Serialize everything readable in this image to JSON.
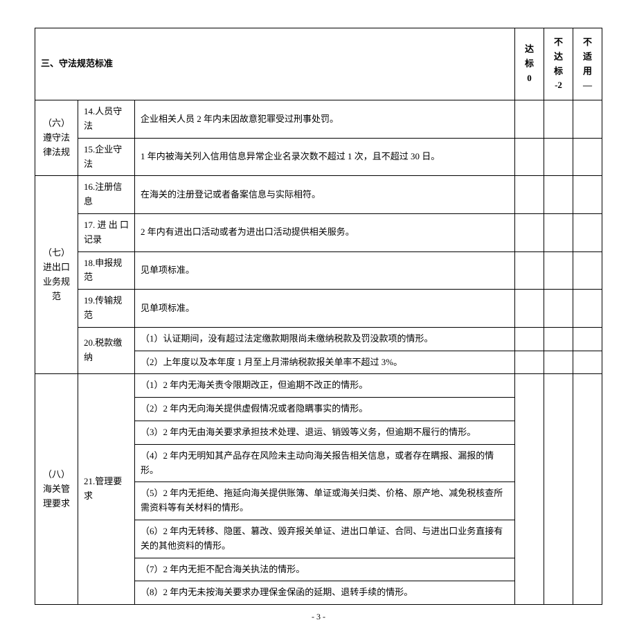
{
  "header": {
    "title": "三、守法规范标准",
    "col_meet": "达标",
    "col_meet_score": "0",
    "col_fail": "不达标",
    "col_fail_score": "-2",
    "col_na": "不适用",
    "col_na_score": "—"
  },
  "sections": {
    "six": {
      "cat": "（六）\n遵守法律法规",
      "r14_item": "14.人员守法",
      "r14_desc": "企业相关人员 2 年内未因故意犯罪受过刑事处罚。",
      "r15_item": "15.企业守法",
      "r15_desc": "1 年内被海关列入信用信息异常企业名录次数不超过 1 次，且不超过 30 日。"
    },
    "seven": {
      "cat": "（七）\n进出口业务规范",
      "r16_item": "16.注册信息",
      "r16_desc": "在海关的注册登记或者备案信息与实际相符。",
      "r17_item": "17. 进 出 口 记录",
      "r17_desc": "2 年内有进出口活动或者为进出口活动提供相关服务。",
      "r18_item": "18.申报规范",
      "r18_desc": "见单项标准。",
      "r19_item": "19.传输规范",
      "r19_desc": "见单项标准。",
      "r20_item": "20.税款缴纳",
      "r20_desc1": "（1）认证期间，没有超过法定缴款期限尚未缴纳税款及罚没款项的情形。",
      "r20_desc2": "（2）上年度以及本年度 1 月至上月滞纳税款报关单率不超过 3%。"
    },
    "eight": {
      "cat": "（八）\n海关管理要求",
      "r21_item": "21.管理要求",
      "r21_d1": "（1）2 年内无海关责令限期改正，但逾期不改正的情形。",
      "r21_d2": "（2）2 年内无向海关提供虚假情况或者隐瞒事实的情形。",
      "r21_d3": "（3）2 年内无由海关要求承担技术处理、退运、销毁等义务，但逾期不履行的情形。",
      "r21_d4": "（4）2 年内无明知其产品存在风险未主动向海关报告相关信息，或者存在瞒报、漏报的情形。",
      "r21_d5": "（5）2 年内无拒绝、拖延向海关提供账簿、单证或海关归类、价格、原产地、减免税核查所需资料等有关材料的情形。",
      "r21_d6": "（6）2 年内无转移、隐匿、篡改、毁弃报关单证、进出口单证、合同、与进出口业务直接有关的其他资料的情形。",
      "r21_d7": "（7）2 年内无拒不配合海关执法的情形。",
      "r21_d8": "（8）2 年内无未按海关要求办理保金保函的延期、退转手续的情形。"
    }
  },
  "page_number": "- 3 -"
}
